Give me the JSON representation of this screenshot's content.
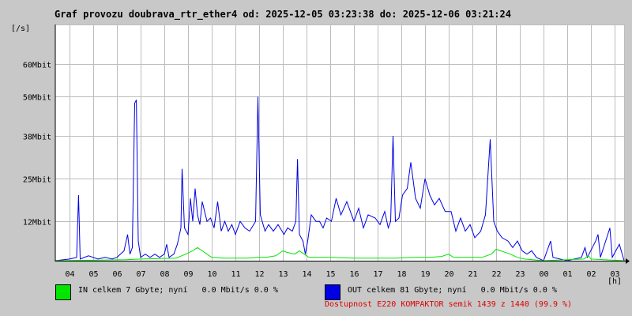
{
  "title": "Graf provozu doubrava_rtr_ether4 od: 2025-12-05 03:23:38 do: 2025-12-06 03:21:24",
  "colors": {
    "in": "#00e600",
    "out": "#0000e6",
    "grid": "#bdbdbd",
    "availability": "#e00000"
  },
  "legend": {
    "in": "IN celkem 7 Gbyte; nyní   0.0 Mbit/s 0.0 %",
    "out": "OUT celkem 81 Gbyte; nyní   0.0 Mbit/s 0.0 %",
    "availability": "Dostupnost E220 KOMPAKTOR semik 1439 z 1440 (99.9 %)"
  },
  "chart_data": {
    "type": "line",
    "title": "Graf provozu doubrava_rtr_ether4 od: 2025-12-05 03:23:38 do: 2025-12-06 03:21:24",
    "ylabel": "[/s]",
    "xlabel": "[h]",
    "x_start_hour": 3.4,
    "x_end_hour": 27.4,
    "x_ticks": [
      "04",
      "05",
      "06",
      "07",
      "08",
      "09",
      "10",
      "11",
      "12",
      "13",
      "14",
      "15",
      "16",
      "17",
      "18",
      "19",
      "20",
      "21",
      "22",
      "23",
      "00",
      "01",
      "02",
      "03"
    ],
    "y_ticks": [
      {
        "value": 12,
        "label": "12Mbit"
      },
      {
        "value": 25,
        "label": "25Mbit"
      },
      {
        "value": 38,
        "label": "38Mbit"
      },
      {
        "value": 50,
        "label": "50Mbit"
      },
      {
        "value": 60,
        "label": "60Mbit"
      }
    ],
    "ylim": [
      0,
      72
    ],
    "grid": true,
    "series": [
      {
        "name": "OUT",
        "color": "#0000e6",
        "points": [
          [
            3.4,
            0
          ],
          [
            4.0,
            0.5
          ],
          [
            4.3,
            1
          ],
          [
            4.38,
            20
          ],
          [
            4.45,
            0.5
          ],
          [
            4.8,
            1.5
          ],
          [
            5.2,
            0.5
          ],
          [
            5.5,
            1
          ],
          [
            5.8,
            0.5
          ],
          [
            6.0,
            1
          ],
          [
            6.3,
            3
          ],
          [
            6.45,
            8
          ],
          [
            6.55,
            2
          ],
          [
            6.65,
            4
          ],
          [
            6.75,
            48
          ],
          [
            6.82,
            49
          ],
          [
            6.9,
            6
          ],
          [
            7.0,
            1
          ],
          [
            7.2,
            2
          ],
          [
            7.4,
            1
          ],
          [
            7.6,
            2
          ],
          [
            7.8,
            1
          ],
          [
            8.0,
            2
          ],
          [
            8.1,
            5
          ],
          [
            8.2,
            1
          ],
          [
            8.4,
            2
          ],
          [
            8.55,
            5
          ],
          [
            8.7,
            10
          ],
          [
            8.75,
            28
          ],
          [
            8.85,
            10
          ],
          [
            9.0,
            8
          ],
          [
            9.1,
            19
          ],
          [
            9.2,
            12
          ],
          [
            9.3,
            22
          ],
          [
            9.4,
            14
          ],
          [
            9.5,
            11
          ],
          [
            9.6,
            18
          ],
          [
            9.8,
            12
          ],
          [
            9.95,
            13
          ],
          [
            10.1,
            10
          ],
          [
            10.25,
            18
          ],
          [
            10.4,
            9
          ],
          [
            10.55,
            12
          ],
          [
            10.7,
            9
          ],
          [
            10.85,
            11
          ],
          [
            11.0,
            8
          ],
          [
            11.2,
            12
          ],
          [
            11.4,
            10
          ],
          [
            11.6,
            9
          ],
          [
            11.85,
            12
          ],
          [
            11.95,
            50
          ],
          [
            12.05,
            14
          ],
          [
            12.25,
            9
          ],
          [
            12.4,
            11
          ],
          [
            12.6,
            9
          ],
          [
            12.8,
            11
          ],
          [
            13.05,
            8
          ],
          [
            13.2,
            10
          ],
          [
            13.4,
            9
          ],
          [
            13.55,
            12
          ],
          [
            13.62,
            31
          ],
          [
            13.7,
            8
          ],
          [
            13.85,
            6
          ],
          [
            13.95,
            2
          ],
          [
            14.05,
            6
          ],
          [
            14.2,
            14
          ],
          [
            14.4,
            12
          ],
          [
            14.55,
            12
          ],
          [
            14.7,
            10
          ],
          [
            14.85,
            13
          ],
          [
            15.05,
            12
          ],
          [
            15.25,
            19
          ],
          [
            15.45,
            14
          ],
          [
            15.7,
            18
          ],
          [
            16.0,
            12
          ],
          [
            16.2,
            16
          ],
          [
            16.4,
            10
          ],
          [
            16.6,
            14
          ],
          [
            16.9,
            13
          ],
          [
            17.1,
            11
          ],
          [
            17.3,
            15
          ],
          [
            17.45,
            10
          ],
          [
            17.55,
            12
          ],
          [
            17.65,
            38
          ],
          [
            17.75,
            12
          ],
          [
            17.9,
            13
          ],
          [
            18.05,
            20
          ],
          [
            18.25,
            22
          ],
          [
            18.4,
            30
          ],
          [
            18.6,
            19
          ],
          [
            18.8,
            16
          ],
          [
            19.0,
            25
          ],
          [
            19.2,
            20
          ],
          [
            19.4,
            17
          ],
          [
            19.6,
            19
          ],
          [
            19.85,
            15
          ],
          [
            20.1,
            15
          ],
          [
            20.3,
            9
          ],
          [
            20.5,
            13
          ],
          [
            20.7,
            9
          ],
          [
            20.9,
            11
          ],
          [
            21.1,
            7
          ],
          [
            21.35,
            9
          ],
          [
            21.55,
            14
          ],
          [
            21.75,
            37
          ],
          [
            21.9,
            12
          ],
          [
            22.05,
            9
          ],
          [
            22.25,
            7
          ],
          [
            22.5,
            6
          ],
          [
            22.7,
            4
          ],
          [
            22.9,
            6
          ],
          [
            23.1,
            3
          ],
          [
            23.3,
            2
          ],
          [
            23.5,
            3
          ],
          [
            23.7,
            1
          ],
          [
            24.0,
            0
          ],
          [
            24.3,
            6
          ],
          [
            24.4,
            1
          ],
          [
            25.0,
            0
          ],
          [
            25.6,
            1
          ],
          [
            25.75,
            4
          ],
          [
            25.85,
            1
          ],
          [
            26.2,
            6
          ],
          [
            26.3,
            8
          ],
          [
            26.4,
            1
          ],
          [
            26.8,
            10
          ],
          [
            26.9,
            1
          ],
          [
            27.2,
            5
          ],
          [
            27.4,
            0
          ]
        ]
      },
      {
        "name": "IN",
        "color": "#00e600",
        "points": [
          [
            3.4,
            0
          ],
          [
            6.4,
            0.3
          ],
          [
            7.0,
            0.5
          ],
          [
            8.5,
            0.8
          ],
          [
            8.9,
            2
          ],
          [
            9.2,
            3
          ],
          [
            9.4,
            4
          ],
          [
            9.6,
            3
          ],
          [
            9.8,
            2
          ],
          [
            10.0,
            1
          ],
          [
            10.5,
            0.8
          ],
          [
            11.5,
            0.8
          ],
          [
            12.0,
            1
          ],
          [
            12.3,
            1
          ],
          [
            12.7,
            1.5
          ],
          [
            13.0,
            3
          ],
          [
            13.2,
            2.5
          ],
          [
            13.5,
            2
          ],
          [
            13.7,
            3
          ],
          [
            13.9,
            2
          ],
          [
            14.1,
            1
          ],
          [
            14.5,
            1
          ],
          [
            15.0,
            1
          ],
          [
            16.0,
            0.8
          ],
          [
            17.0,
            0.8
          ],
          [
            17.8,
            0.8
          ],
          [
            18.5,
            1
          ],
          [
            19.2,
            1
          ],
          [
            19.7,
            1.3
          ],
          [
            20.0,
            2
          ],
          [
            20.2,
            1
          ],
          [
            21.0,
            1
          ],
          [
            21.4,
            1
          ],
          [
            21.8,
            2
          ],
          [
            22.0,
            3.5
          ],
          [
            22.2,
            3
          ],
          [
            22.6,
            2
          ],
          [
            22.9,
            1
          ],
          [
            23.2,
            0.5
          ],
          [
            24.0,
            0
          ],
          [
            25.7,
            0.5
          ],
          [
            25.9,
            1.5
          ],
          [
            26.0,
            0.5
          ],
          [
            27.4,
            0
          ]
        ]
      }
    ]
  }
}
